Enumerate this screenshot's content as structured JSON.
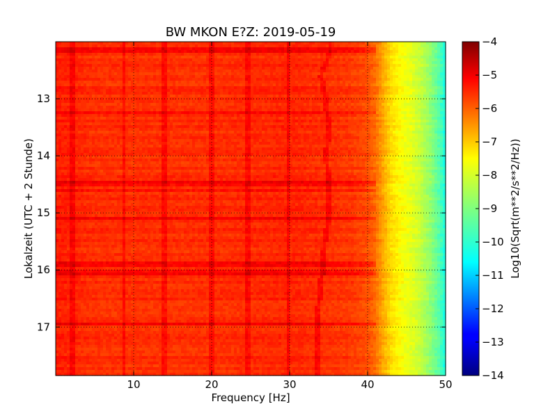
{
  "chart_data": {
    "type": "heatmap",
    "title": "BW MKON E?Z: 2019-05-19",
    "xlabel": "Frequency [Hz]",
    "ylabel": "Lokalzeit (UTC + 2 Stunde)",
    "colorbar_label": "Log10(Sqrt(m**2/s**2/Hz))",
    "xlim": [
      0,
      50
    ],
    "ylim": [
      17.85,
      12.0
    ],
    "y_inverted": true,
    "x_ticks": [
      10,
      20,
      30,
      40,
      50
    ],
    "y_ticks": [
      13,
      14,
      15,
      16,
      17
    ],
    "grid": true,
    "colormap": "jet",
    "clim": [
      -14,
      -4
    ],
    "colorbar_ticks": [
      -4,
      -5,
      -6,
      -7,
      -8,
      -9,
      -10,
      -11,
      -12,
      -13,
      -14
    ],
    "profile": {
      "frequency_hz": [
        0,
        5,
        10,
        20,
        30,
        35,
        38,
        40,
        41,
        42,
        43,
        44,
        45,
        46,
        47,
        48,
        49,
        50
      ],
      "log10_amplitude": [
        -5.5,
        -5.7,
        -5.7,
        -5.7,
        -5.6,
        -5.7,
        -5.8,
        -6.0,
        -6.3,
        -6.9,
        -7.4,
        -7.7,
        -7.9,
        -8.1,
        -8.4,
        -8.8,
        -9.3,
        -10.0
      ]
    },
    "spectral_lines_hz": [
      2.2,
      8.8,
      14.0,
      20.0,
      24.6,
      29.8
    ],
    "wandering_line": {
      "time": [
        12.2,
        12.6,
        13.0,
        13.5,
        14.0,
        14.5,
        15.0,
        15.5,
        16.0,
        16.5,
        17.0
      ],
      "frequency_hz": [
        35.2,
        34.0,
        34.6,
        35.0,
        34.7,
        35.0,
        35.1,
        34.5,
        34.2,
        33.8,
        33.5
      ]
    },
    "horizontal_bands_time": [
      12.15,
      13.25,
      14.5,
      14.6,
      15.1,
      15.9,
      16.05,
      16.95
    ]
  }
}
